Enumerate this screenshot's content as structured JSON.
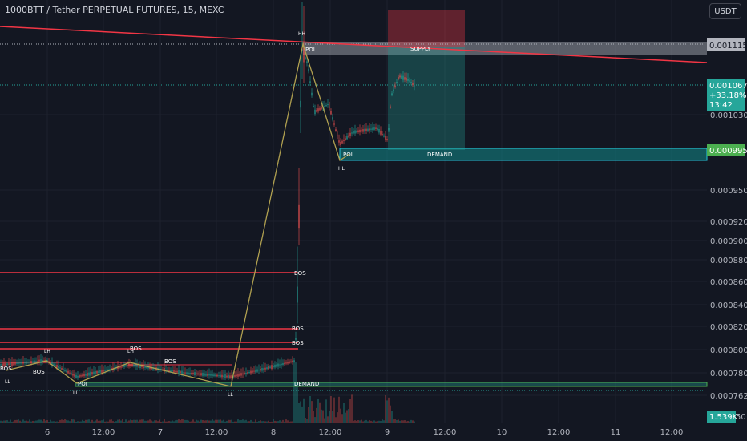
{
  "header": {
    "title": "1000BTT / Tether PERPETUAL FUTURES, 15, MEXC"
  },
  "toolbar": {
    "currency_label": "USDT"
  },
  "chart_data": {
    "type": "candlestick",
    "price_axis": {
      "ticks": [
        "0.0010300",
        "0.0009500",
        "0.0009200",
        "0.0009000",
        "0.0008800",
        "0.0008600",
        "0.0008400",
        "0.0008200",
        "0.0008000",
        "0.0007800",
        "0.0007620"
      ],
      "bottom_tick": "50"
    },
    "time_axis": {
      "ticks": [
        "6",
        "12:00",
        "7",
        "12:00",
        "8",
        "12:00",
        "9",
        "12:00",
        "10",
        "12:00",
        "11",
        "12:00"
      ]
    },
    "price_labels": {
      "supply_level": "0.0011159",
      "last_price": "0.0010673",
      "change": "+33.18%",
      "countdown": "13:42",
      "demand_level": "0.0009950",
      "volume": "1.539K"
    },
    "zones": {
      "supply": "SUPPLY",
      "demand": "DEMAND",
      "demand_low": "DEMAND"
    },
    "annotations": {
      "poi": "POI",
      "bos": "BOS",
      "hh": "HH",
      "hl": "HL",
      "lh": "LH",
      "ll": "LL"
    },
    "colors": {
      "background": "#131722",
      "bull": "#26a69a",
      "bear": "#ef5350",
      "bos_line": "#f23645",
      "zigzag": "#b0a050",
      "demand_zone": "#138a8a",
      "supply_zone": "#b2b5be"
    }
  }
}
